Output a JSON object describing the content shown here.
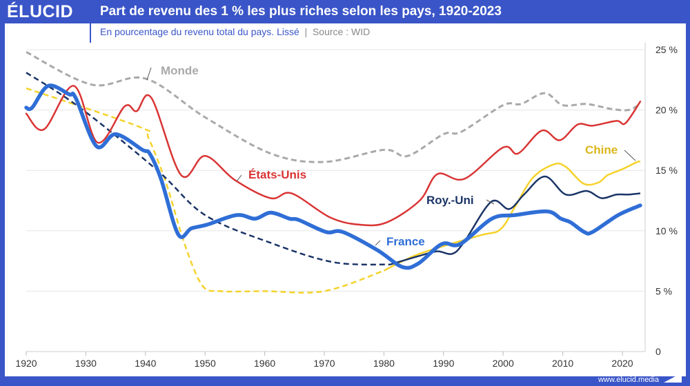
{
  "header": {
    "logo": "ÉLUCID",
    "title": "Part de revenu des 1 % les plus riches selon les pays, 1920-2023",
    "subtitle": "En pourcentage du revenu total du pays. Lissé",
    "source": "Source : WID"
  },
  "footer": {
    "url": "www.elucid.media"
  },
  "chart_data": {
    "type": "line",
    "title": "Part de revenu des 1 % les plus riches selon les pays, 1920-2023",
    "subtitle": "En pourcentage du revenu total du pays. Lissé | Source : WID",
    "xlim": [
      1920,
      2023
    ],
    "ylim": [
      0,
      25
    ],
    "x_ticks": [
      "1920",
      "1930",
      "1940",
      "1950",
      "1960",
      "1970",
      "1980",
      "1990",
      "2000",
      "2010",
      "2020"
    ],
    "y_ticks": [
      "0",
      "5 %",
      "10 %",
      "15 %",
      "20 %",
      "25 %"
    ],
    "y_axis_side": "right",
    "grid": true,
    "series": [
      {
        "name": "Monde",
        "color": "#a9a9a9",
        "style": "dashed",
        "width": 3,
        "x": [
          1920,
          1931,
          1940,
          1950,
          1961,
          1970,
          1980,
          1984,
          1990,
          1993,
          2000,
          2003,
          2007,
          2010,
          2014,
          2018,
          2021,
          2023
        ],
        "y": [
          24.8,
          22.1,
          22.6,
          19.4,
          16.4,
          15.7,
          16.7,
          16.2,
          18.0,
          18.2,
          20.4,
          20.5,
          21.4,
          20.4,
          20.5,
          20.1,
          20.0,
          20.5
        ]
      },
      {
        "name": "États-Unis",
        "color": "#d93434",
        "style": "solid",
        "width": 2.5,
        "x": [
          1920,
          1923,
          1928,
          1932,
          1936.5,
          1938.5,
          1941,
          1946,
          1950,
          1955,
          1961,
          1964.5,
          1971,
          1976,
          1980.5,
          1986,
          1989,
          1993.5,
          2000,
          2002.5,
          2006.5,
          2009.5,
          2012.5,
          2015,
          2019,
          2020.5,
          2023
        ],
        "y": [
          19.7,
          18.4,
          22.0,
          17.3,
          20.3,
          19.9,
          21.0,
          14.6,
          16.2,
          14.2,
          12.7,
          13.1,
          11.1,
          10.5,
          10.7,
          12.5,
          14.7,
          14.3,
          16.9,
          16.4,
          18.3,
          17.5,
          18.8,
          18.7,
          19.1,
          18.9,
          20.7
        ]
      },
      {
        "name": "Chine",
        "color": "#f5d22a",
        "style": "dashed-then-solid",
        "solid_from": 1980,
        "width": 2.5,
        "x": [
          1920,
          1939,
          1940.5,
          1943.5,
          1946.5,
          1949.5,
          1952.5,
          1960,
          1970,
          1980,
          1986,
          1996,
          1999.5,
          2002,
          2005,
          2008.5,
          2010.5,
          2013.5,
          2016,
          2017.5,
          2020,
          2022.5,
          2023
        ],
        "y": [
          21.8,
          18.6,
          17.7,
          13.9,
          9.0,
          5.5,
          5.0,
          5.0,
          5.0,
          6.7,
          8.1,
          9.6,
          10.1,
          12.0,
          14.4,
          15.5,
          15.3,
          13.9,
          14.0,
          14.6,
          15.1,
          15.7,
          15.7
        ]
      },
      {
        "name": "Roy.-Uni",
        "color": "#1a3466",
        "style": "dashed-then-solid",
        "solid_from": 1981,
        "width": 2.5,
        "x": [
          1920,
          1929,
          1942,
          1950,
          1961,
          1971.5,
          1981,
          1986.5,
          1989,
          1991.5,
          1993.5,
          1998,
          2001,
          2003.5,
          2007,
          2010.5,
          2014,
          2016.5,
          2019,
          2021,
          2023
        ],
        "y": [
          23.1,
          20.2,
          15.0,
          11.3,
          9.0,
          7.4,
          7.2,
          8.0,
          8.3,
          8.1,
          9.1,
          12.4,
          11.8,
          13.0,
          14.5,
          13.0,
          13.3,
          12.7,
          13.0,
          13.0,
          13.1
        ]
      },
      {
        "name": "France",
        "color": "#2f6ed6",
        "style": "solid",
        "width": 5.5,
        "x": [
          1920,
          1921,
          1923.7,
          1927.2,
          1928.3,
          1931.8,
          1935,
          1939.5,
          1940.7,
          1942.6,
          1945.5,
          1947.7,
          1950.3,
          1955.3,
          1958.4,
          1961,
          1964.2,
          1965.7,
          1970.3,
          1973.1,
          1978.9,
          1983.1,
          1985.8,
          1989.7,
          1992.8,
          1998.1,
          2002,
          2007.4,
          2009.7,
          2011.3,
          2013.6,
          2015,
          2019.3,
          2023
        ],
        "y": [
          20.2,
          20.2,
          22.0,
          21.3,
          21.0,
          17.0,
          18.0,
          16.7,
          16.4,
          14.3,
          9.7,
          10.2,
          10.5,
          11.3,
          11.0,
          11.5,
          11.0,
          10.9,
          9.9,
          9.9,
          8.4,
          7.0,
          7.3,
          8.9,
          8.9,
          11.0,
          11.3,
          11.6,
          11.0,
          10.7,
          9.9,
          9.9,
          11.3,
          12.1
        ]
      }
    ]
  }
}
